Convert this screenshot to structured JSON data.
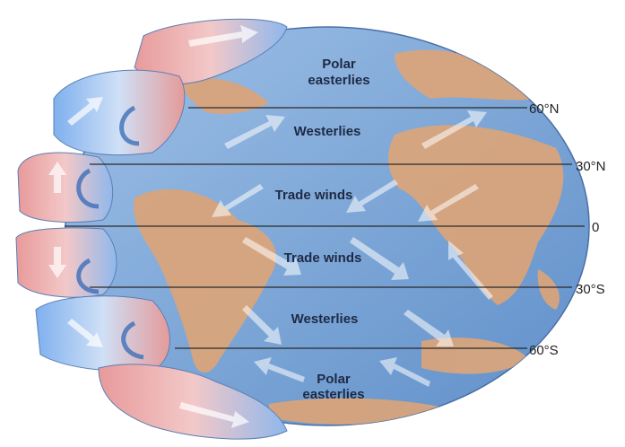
{
  "wind_belts": [
    {
      "lines": [
        "Polar",
        "easterlies"
      ]
    },
    {
      "lines": [
        "Westerlies"
      ]
    },
    {
      "lines": [
        "Trade winds"
      ]
    },
    {
      "lines": [
        "Trade winds"
      ]
    },
    {
      "lines": [
        "Westerlies"
      ]
    },
    {
      "lines": [
        "Polar",
        "easterlies"
      ]
    }
  ],
  "latitudes": [
    "60°N",
    "30°N",
    "0",
    "30°S",
    "60°S"
  ]
}
